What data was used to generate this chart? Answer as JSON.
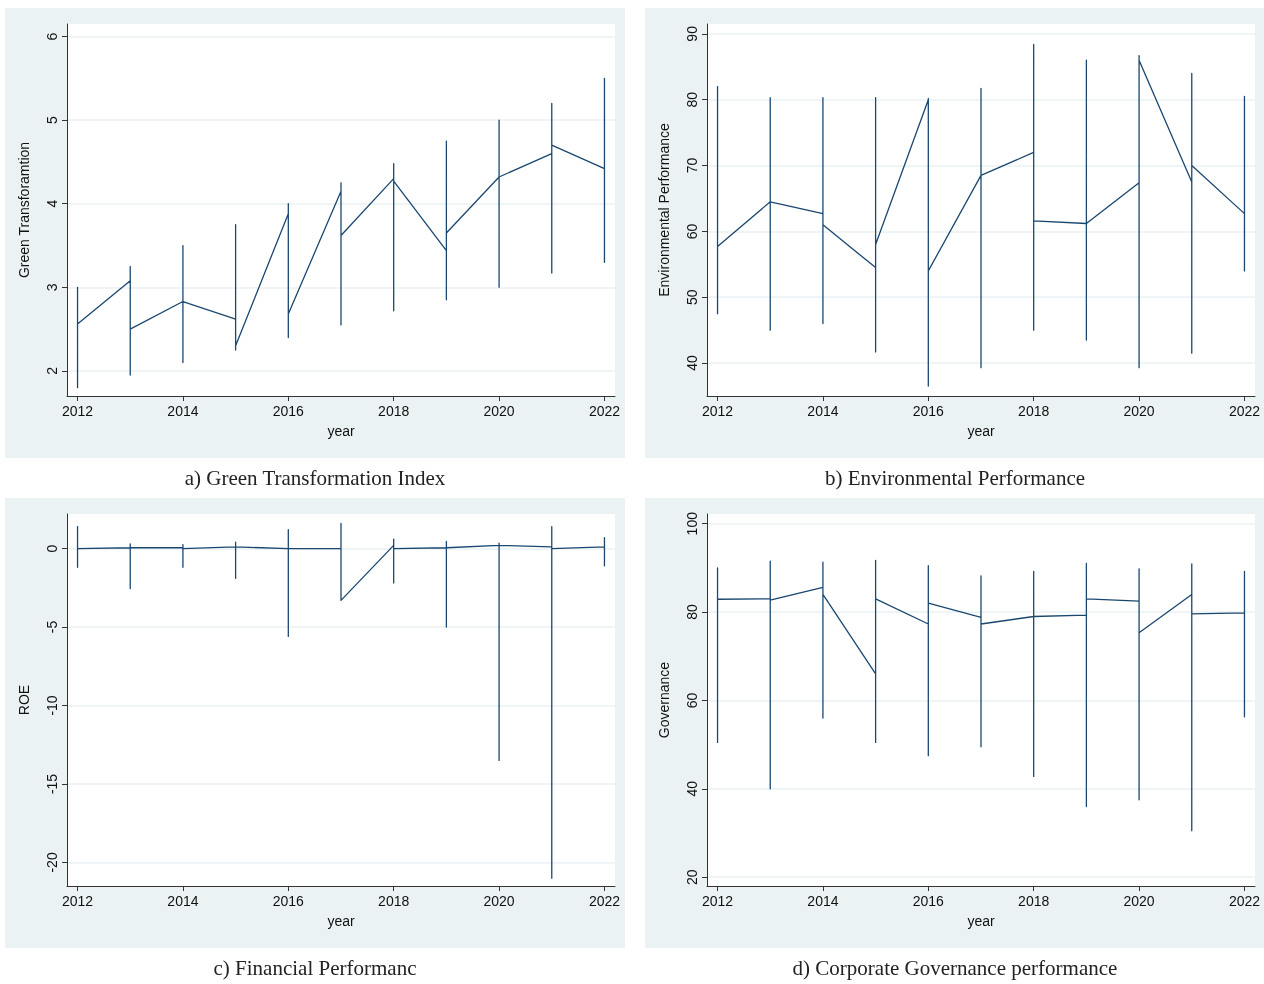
{
  "chart_data": [
    {
      "type": "line",
      "xlabel": "year",
      "ylabel": "Green Transforamtion",
      "annotations": [
        "a) Green Transformation Index"
      ],
      "xlim": [
        2011.8,
        2022.2
      ],
      "xticks": [
        2012,
        2014,
        2016,
        2018,
        2020,
        2022
      ],
      "ylim": [
        1.7,
        6.15
      ],
      "yticks": [
        2,
        3,
        4,
        5,
        6
      ],
      "grid": "y",
      "marker": "none",
      "line_style": "solid",
      "series": [
        {
          "color": "#1a476f",
          "x": [
            2012,
            2012,
            2012,
            2012,
            2013,
            2013,
            2013,
            2013,
            2014,
            2014,
            2014,
            2014,
            2015,
            2015,
            2015,
            2015,
            2016,
            2016,
            2016,
            2016,
            2017,
            2017,
            2017,
            2017,
            2018,
            2018,
            2018,
            2018,
            2019,
            2019,
            2019,
            2019,
            2020,
            2020,
            2020,
            2020,
            2021,
            2021,
            2021,
            2021,
            2022,
            2022,
            2022,
            2022
          ],
          "values": [
            2.56,
            1.8,
            3.0,
            2.56,
            3.08,
            1.95,
            3.25,
            2.5,
            2.83,
            2.1,
            3.5,
            2.83,
            2.62,
            2.25,
            3.75,
            2.3,
            3.88,
            2.4,
            4.0,
            2.68,
            4.15,
            2.55,
            4.25,
            3.62,
            4.3,
            2.72,
            4.48,
            4.27,
            3.44,
            2.85,
            4.75,
            3.65,
            4.32,
            3.0,
            5.0,
            4.32,
            4.6,
            3.17,
            5.2,
            4.7,
            4.42,
            3.3,
            5.5,
            4.42
          ]
        }
      ]
    },
    {
      "type": "line",
      "xlabel": "year",
      "ylabel": "Environmental Performance",
      "annotations": [
        "b) Environmental Performance"
      ],
      "xlim": [
        2011.8,
        2022.2
      ],
      "xticks": [
        2012,
        2014,
        2016,
        2018,
        2020,
        2022
      ],
      "ylim": [
        35,
        91.5
      ],
      "yticks": [
        40,
        50,
        60,
        70,
        80,
        90
      ],
      "grid": "y",
      "marker": "none",
      "line_style": "solid",
      "series": [
        {
          "color": "#1a476f",
          "x": [
            2012,
            2012,
            2012,
            2012,
            2013,
            2013,
            2013,
            2013,
            2014,
            2014,
            2014,
            2014,
            2015,
            2015,
            2015,
            2015,
            2016,
            2016,
            2016,
            2016,
            2017,
            2017,
            2017,
            2017,
            2018,
            2018,
            2018,
            2018,
            2019,
            2019,
            2019,
            2019,
            2020,
            2020,
            2020,
            2020,
            2021,
            2021,
            2021,
            2021,
            2022,
            2022,
            2022,
            2022
          ],
          "values": [
            57.7,
            47.5,
            82,
            57.7,
            64.5,
            45,
            80.3,
            64.5,
            62.7,
            46,
            80.3,
            61,
            54.5,
            41.7,
            80.3,
            58,
            80,
            36.5,
            80.2,
            54,
            68.5,
            39.3,
            81.7,
            68.5,
            72,
            45,
            88.4,
            61.6,
            61.2,
            43.5,
            86,
            61.2,
            67.4,
            39.3,
            86.7,
            86,
            67.5,
            41.5,
            84,
            70,
            62.7,
            54,
            80.5,
            62.7
          ]
        }
      ]
    },
    {
      "type": "line",
      "xlabel": "year",
      "ylabel": "ROE",
      "annotations": [
        "c) Financial Performanc"
      ],
      "xlim": [
        2011.8,
        2022.2
      ],
      "xticks": [
        2012,
        2014,
        2016,
        2018,
        2020,
        2022
      ],
      "ylim": [
        -21.5,
        2.2
      ],
      "yticks": [
        -20,
        -15,
        -10,
        -5,
        0
      ],
      "grid": "y",
      "marker": "none",
      "line_style": "solid",
      "series": [
        {
          "color": "#1a476f",
          "x": [
            2012,
            2012,
            2012,
            2012,
            2013,
            2013,
            2013,
            2013,
            2014,
            2014,
            2014,
            2014,
            2015,
            2015,
            2015,
            2015,
            2016,
            2016,
            2016,
            2016,
            2017,
            2017,
            2017,
            2017,
            2018,
            2018,
            2018,
            2018,
            2019,
            2019,
            2019,
            2019,
            2020,
            2020,
            2020,
            2020,
            2021,
            2021,
            2021,
            2021,
            2022,
            2022,
            2022,
            2022
          ],
          "values": [
            0,
            -1.2,
            1.4,
            0,
            0.05,
            -2.55,
            0.3,
            0.05,
            0.05,
            -1.2,
            0.25,
            0,
            0.1,
            -1.9,
            0.4,
            0.1,
            0,
            -5.6,
            1.2,
            0,
            0,
            1.6,
            -3.3,
            -3.3,
            0.2,
            -2.2,
            0.6,
            0,
            0.05,
            -5,
            0.45,
            0.05,
            0.2,
            -13.5,
            0.35,
            0.2,
            0.1,
            -21,
            1.4,
            0,
            0.1,
            -1.1,
            0.7,
            0.1
          ]
        }
      ]
    },
    {
      "type": "line",
      "xlabel": "year",
      "ylabel": "Governance",
      "annotations": [
        "d) Corporate Governance performance"
      ],
      "xlim": [
        2011.8,
        2022.2
      ],
      "xticks": [
        2012,
        2014,
        2016,
        2018,
        2020,
        2022
      ],
      "ylim": [
        18,
        102.2
      ],
      "yticks": [
        20,
        40,
        60,
        80,
        100
      ],
      "grid": "y",
      "marker": "none",
      "line_style": "solid",
      "series": [
        {
          "color": "#1a476f",
          "x": [
            2012,
            2012,
            2012,
            2012,
            2013,
            2013,
            2013,
            2013,
            2014,
            2014,
            2014,
            2014,
            2015,
            2015,
            2015,
            2015,
            2016,
            2016,
            2016,
            2016,
            2017,
            2017,
            2017,
            2017,
            2018,
            2018,
            2018,
            2018,
            2019,
            2019,
            2019,
            2019,
            2020,
            2020,
            2020,
            2020,
            2021,
            2021,
            2021,
            2021,
            2022,
            2022,
            2022,
            2022
          ],
          "values": [
            82.9,
            50.5,
            90,
            82.9,
            83,
            40,
            91.5,
            82.7,
            85.6,
            56,
            91.3,
            84,
            66,
            50.5,
            91.7,
            83,
            77.3,
            47.5,
            90.5,
            82,
            78.8,
            49.5,
            88.2,
            77.3,
            79,
            42.8,
            89.2,
            79,
            79.3,
            36,
            91,
            83,
            82.5,
            37.5,
            89.8,
            75.3,
            84,
            30.5,
            90.9,
            79.6,
            79.8,
            56.3,
            89.2,
            79.8
          ]
        }
      ]
    }
  ]
}
